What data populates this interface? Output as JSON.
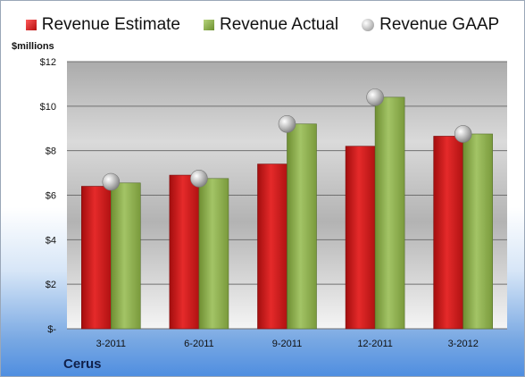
{
  "chart_data": {
    "type": "bar",
    "categories": [
      "3-2011",
      "6-2011",
      "9-2011",
      "12-2011",
      "3-2012"
    ],
    "series": [
      {
        "name": "Revenue Estimate",
        "values": [
          6.4,
          6.9,
          7.4,
          8.2,
          8.65
        ],
        "color": "#c81818"
      },
      {
        "name": "Revenue Actual",
        "values": [
          6.55,
          6.75,
          9.2,
          10.4,
          8.75
        ],
        "color": "#8db04a"
      },
      {
        "name": "Revenue GAAP",
        "values": [
          6.6,
          6.75,
          9.2,
          10.4,
          8.75
        ],
        "marker": "sphere",
        "color": "#b9b9b9"
      }
    ],
    "ylabel": "$millions",
    "ylim": [
      0,
      12
    ],
    "yticks": [
      0,
      2,
      4,
      6,
      8,
      10,
      12
    ],
    "ytick_labels": [
      "$-",
      "$2",
      "$4",
      "$6",
      "$8",
      "$10",
      "$12"
    ],
    "grid": true,
    "legend_position": "top"
  },
  "company": "Cerus"
}
